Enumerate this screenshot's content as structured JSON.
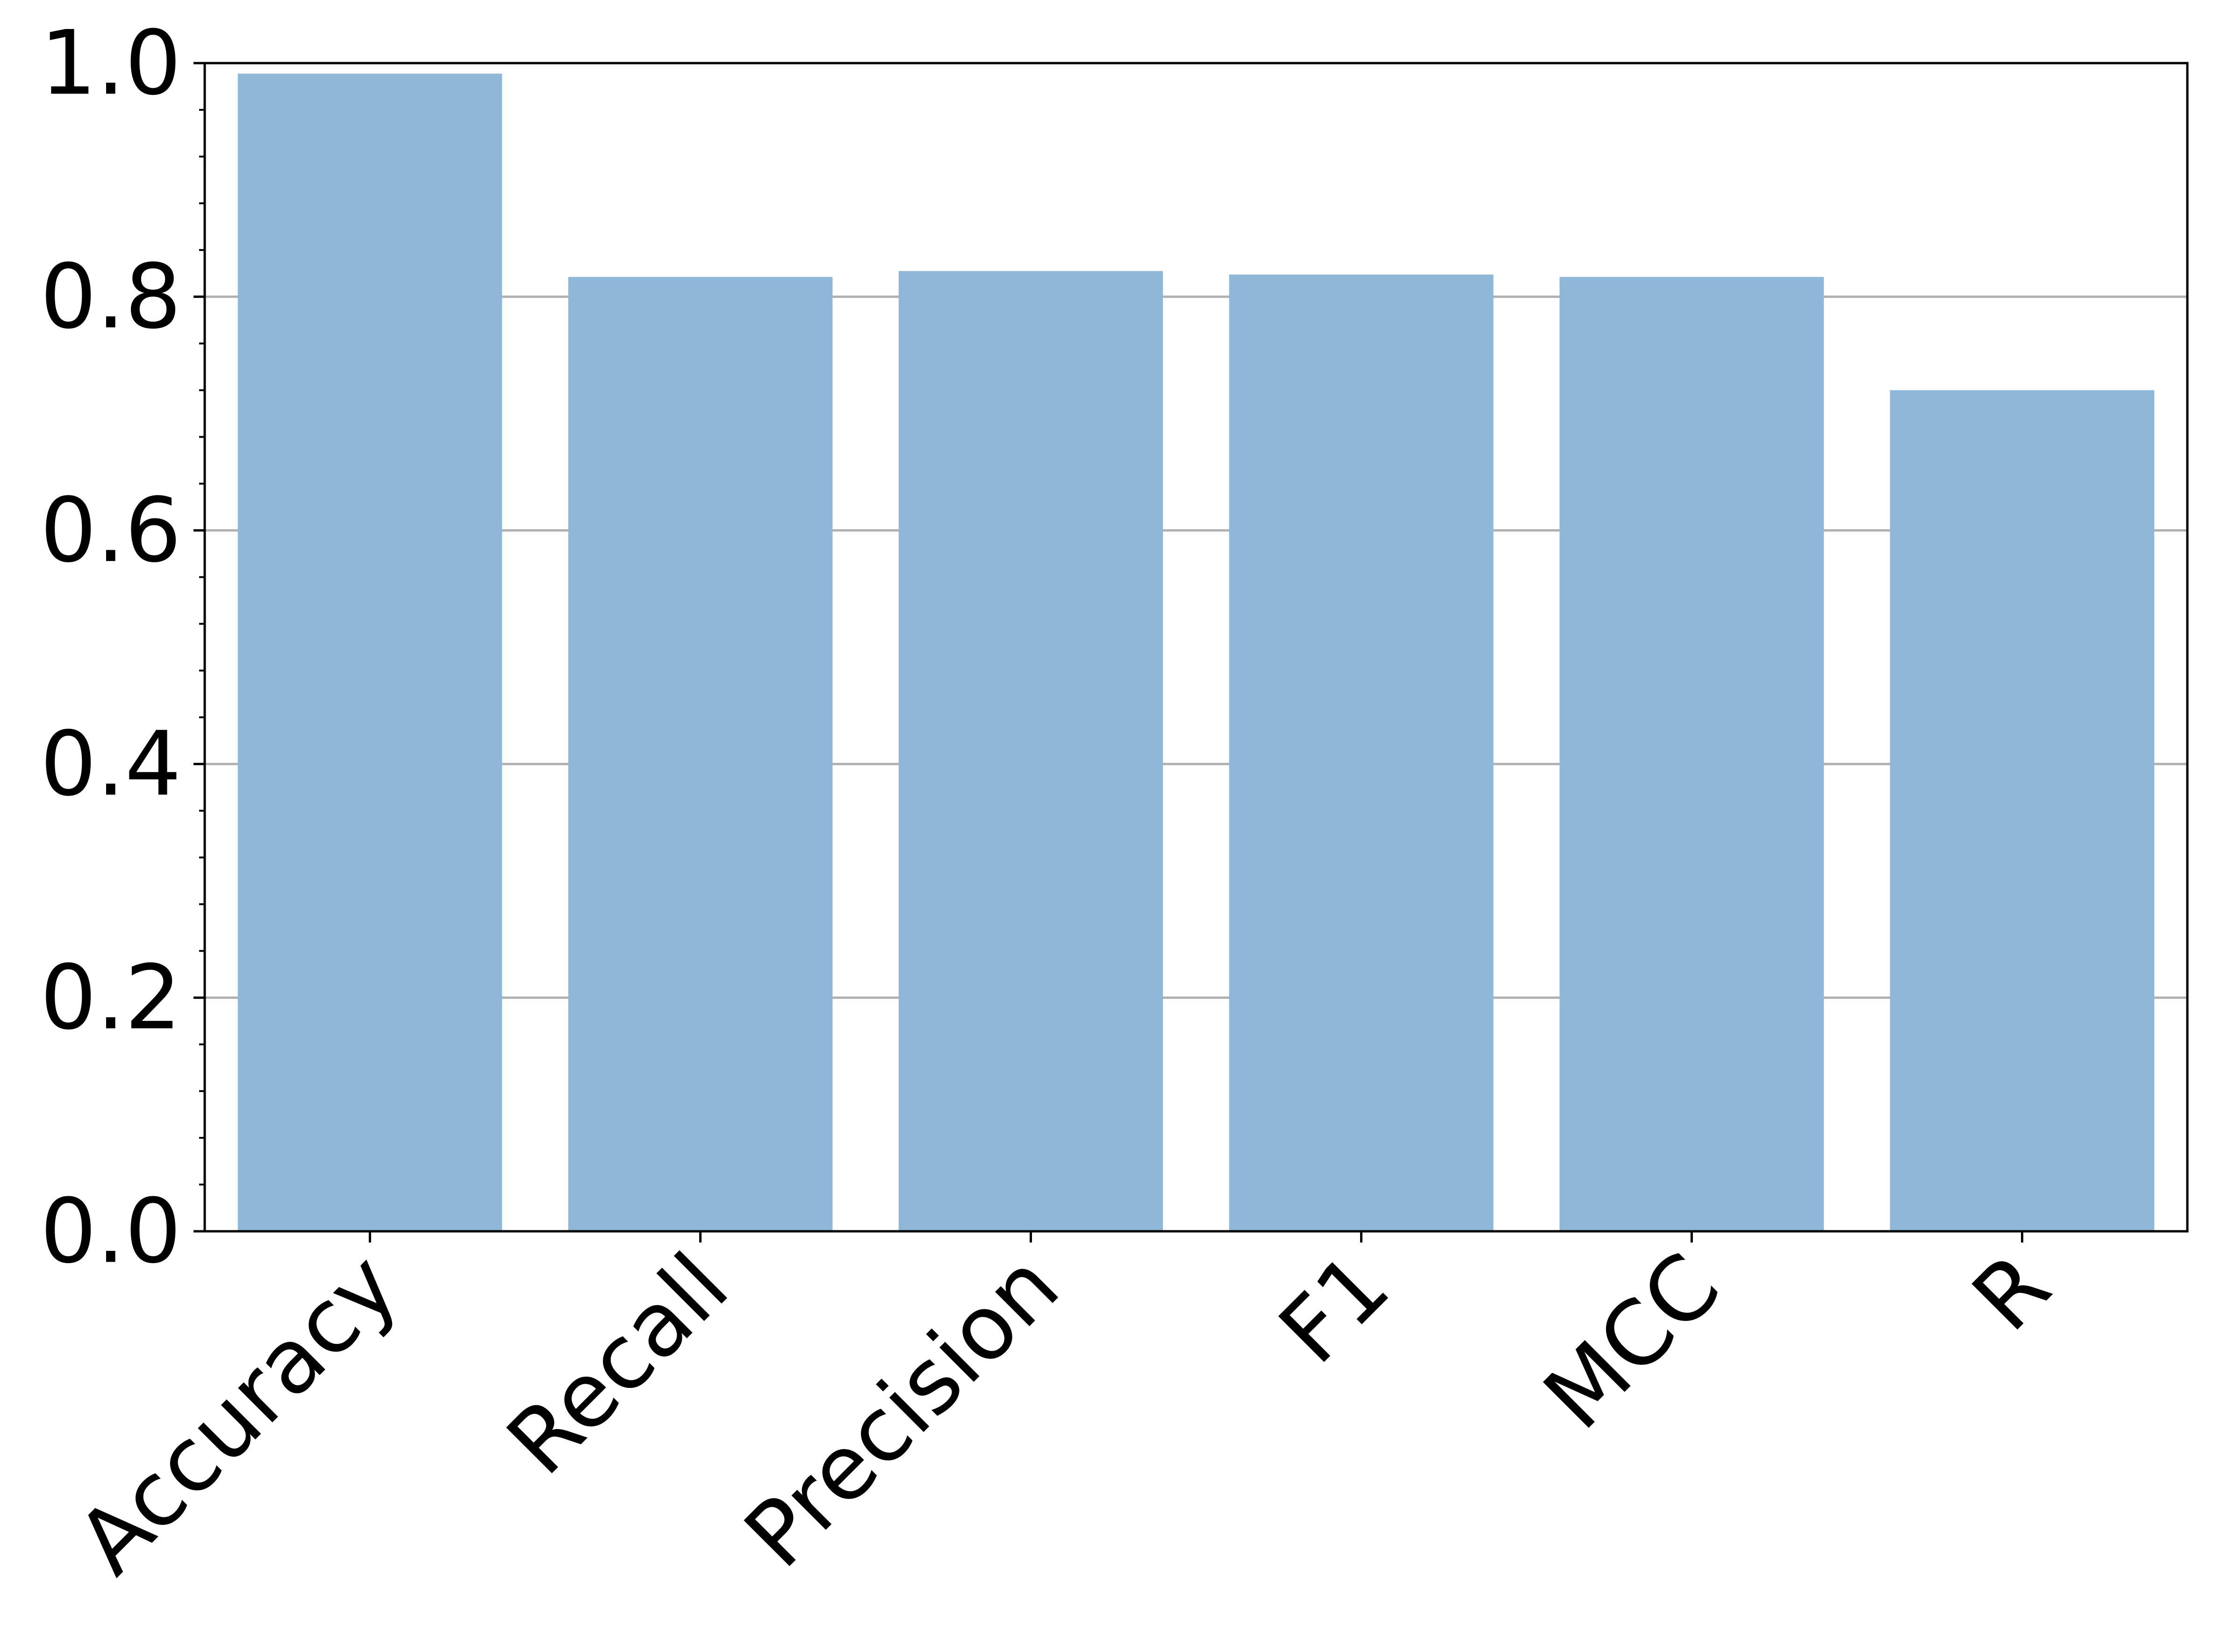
{
  "chart_data": {
    "type": "bar",
    "categories": [
      "Accuracy",
      "Recall",
      "Precision",
      "F1",
      "MCC",
      "R"
    ],
    "values": [
      0.991,
      0.817,
      0.822,
      0.819,
      0.817,
      0.72
    ],
    "ylim": [
      0,
      1.0
    ],
    "yticks": [
      "0.0",
      "0.2",
      "0.4",
      "0.6",
      "0.8",
      "1.0"
    ],
    "ytick_values": [
      0,
      0.2,
      0.4,
      0.6,
      0.8,
      1.0
    ],
    "grid": "horizontal",
    "bar_color": "#8fb8d8",
    "grid_color": "#b0b0b0",
    "title": "",
    "xlabel": "",
    "ylabel": ""
  }
}
